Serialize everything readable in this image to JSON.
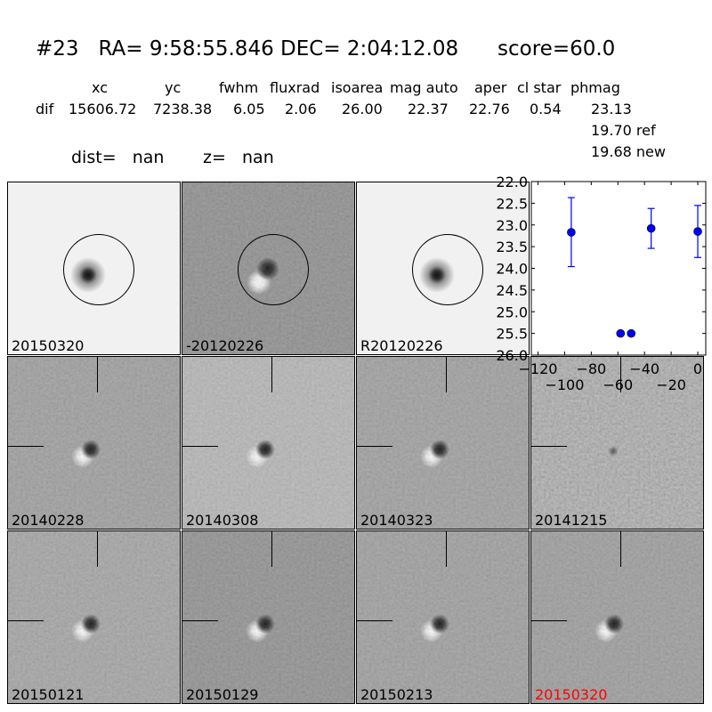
{
  "header": {
    "title": "#23   RA= 9:58:55.846 DEC= 2:04:12.08      score=60.0",
    "columns": [
      "xc",
      "yc",
      "fwhm",
      "fluxrad",
      "isoarea",
      "mag auto",
      "aper",
      "cl star",
      "phmag"
    ],
    "row_label": "dif",
    "row_values": [
      "15606.72",
      "7238.38",
      "6.05",
      "2.06",
      "26.00",
      "22.37",
      "22.76",
      "0.54",
      "23.13"
    ],
    "ref_line": "19.70 ref",
    "new_line": "19.68 new",
    "dist": "dist=   nan",
    "z": "z=   nan"
  },
  "panels": [
    {
      "label": "20150320",
      "bg": "#f1f1f1",
      "type": "new"
    },
    {
      "label": "-20120226",
      "bg": "#8c8c8c",
      "type": "diff"
    },
    {
      "label": "R20120226",
      "bg": "#f1f1f1",
      "type": "ref"
    },
    {
      "label": "20140228",
      "bg": "#9c9c9c",
      "type": "stamp"
    },
    {
      "label": "20140308",
      "bg": "#b4b4b4",
      "type": "stamp"
    },
    {
      "label": "20140323",
      "bg": "#9d9d9d",
      "type": "stamp"
    },
    {
      "label": "20141215",
      "bg": "#a8a8a8",
      "type": "stamp"
    },
    {
      "label": "20150121",
      "bg": "#a2a2a2",
      "type": "stamp"
    },
    {
      "label": "20150129",
      "bg": "#8e8e8e",
      "type": "stamp"
    },
    {
      "label": "20150213",
      "bg": "#9c9c9c",
      "type": "stamp"
    },
    {
      "label": "20150320",
      "bg": "#9a9a9a",
      "type": "stamp",
      "highlight": "#ff0000"
    }
  ],
  "chart_data": {
    "type": "scatter",
    "title": "",
    "xlabel": "",
    "ylabel": "",
    "xlim": [
      -125,
      6
    ],
    "ylim": [
      26.0,
      22.0
    ],
    "y_inverted": true,
    "xticks": [
      -120,
      -100,
      -80,
      -60,
      -40,
      -20,
      0
    ],
    "xtick_labels": [
      "−120",
      "−100",
      "−80",
      "−60",
      "−40",
      "−20",
      "0"
    ],
    "yticks": [
      22.0,
      22.5,
      23.0,
      23.5,
      24.0,
      24.5,
      25.0,
      25.5,
      26.0
    ],
    "ytick_labels": [
      "22.0",
      "22.5",
      "23.0",
      "23.5",
      "24.0",
      "24.5",
      "25.0",
      "25.5",
      "26.0"
    ],
    "grid": false,
    "color": "#0000ff",
    "points": [
      {
        "x": -95,
        "y": 23.17,
        "err_low": 22.37,
        "err_high": 23.96
      },
      {
        "x": -58,
        "y": 25.5,
        "err_low": 25.47,
        "err_high": 25.55
      },
      {
        "x": -50,
        "y": 25.5,
        "err_low": 25.47,
        "err_high": 25.55
      },
      {
        "x": -35,
        "y": 23.08,
        "err_low": 22.62,
        "err_high": 23.54
      },
      {
        "x": 0,
        "y": 23.15,
        "err_low": 22.55,
        "err_high": 23.75
      }
    ]
  }
}
